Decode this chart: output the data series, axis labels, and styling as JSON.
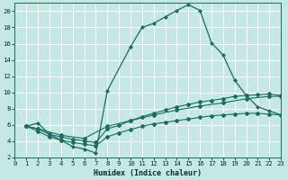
{
  "xlabel": "Humidex (Indice chaleur)",
  "bg_color": "#c5e8e4",
  "grid_color": "#ffffff",
  "line_color": "#1a6b60",
  "xlim": [
    0,
    23
  ],
  "ylim": [
    2,
    21
  ],
  "xticks": [
    0,
    1,
    2,
    3,
    4,
    5,
    6,
    7,
    8,
    9,
    10,
    11,
    12,
    13,
    14,
    15,
    16,
    17,
    18,
    19,
    20,
    21,
    22,
    23
  ],
  "yticks": [
    2,
    4,
    6,
    8,
    10,
    12,
    14,
    16,
    18,
    20
  ],
  "line1_x": [
    1,
    2,
    3,
    4,
    5,
    6,
    7,
    8,
    10,
    11,
    12,
    13,
    14,
    15,
    16,
    17,
    18,
    19,
    20,
    21,
    22,
    23
  ],
  "line1_y": [
    5.8,
    6.2,
    4.8,
    4.1,
    3.3,
    3.0,
    2.5,
    10.2,
    15.6,
    18.0,
    18.5,
    19.3,
    20.1,
    20.8,
    20.1,
    16.1,
    14.6,
    11.5,
    9.6,
    8.2,
    7.7,
    7.2
  ],
  "line2_x": [
    1,
    2,
    4,
    6,
    8,
    10,
    12,
    14,
    16,
    18,
    20,
    22,
    23
  ],
  "line2_y": [
    5.8,
    5.5,
    4.7,
    4.3,
    5.8,
    6.5,
    7.2,
    7.8,
    8.3,
    8.7,
    9.2,
    9.5,
    9.5
  ],
  "line3_x": [
    1,
    2,
    3,
    4,
    5,
    6,
    7,
    8,
    9,
    10,
    11,
    12,
    13,
    14,
    15,
    16,
    17,
    18,
    19,
    20,
    21,
    22,
    23
  ],
  "line3_y": [
    5.8,
    5.5,
    4.8,
    4.5,
    4.2,
    4.0,
    3.8,
    5.5,
    5.9,
    6.5,
    7.0,
    7.4,
    7.8,
    8.2,
    8.5,
    8.8,
    9.0,
    9.2,
    9.5,
    9.6,
    9.7,
    9.8,
    9.6
  ],
  "line4_x": [
    1,
    2,
    3,
    4,
    5,
    6,
    7,
    8,
    9,
    10,
    11,
    12,
    13,
    14,
    15,
    16,
    17,
    18,
    19,
    20,
    21,
    22,
    23
  ],
  "line4_y": [
    5.8,
    5.2,
    4.5,
    4.1,
    3.8,
    3.6,
    3.4,
    4.5,
    5.0,
    5.4,
    5.8,
    6.1,
    6.3,
    6.5,
    6.7,
    6.9,
    7.1,
    7.2,
    7.3,
    7.4,
    7.4,
    7.3,
    7.2
  ]
}
